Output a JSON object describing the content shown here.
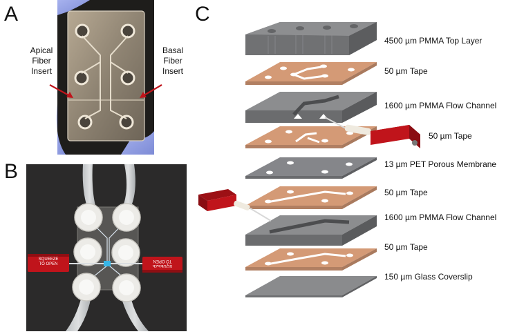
{
  "panels": {
    "a": "A",
    "b": "B",
    "c": "C"
  },
  "panel_a": {
    "apical_label": [
      "Apical",
      "Fiber",
      "Insert"
    ],
    "basal_label": [
      "Basal",
      "Fiber",
      "Insert"
    ]
  },
  "panel_b": {
    "connector_left_text": [
      "SQUEEZE",
      "TO OPEN"
    ],
    "connector_right_text": [
      "SQUEEZE",
      "TO OPEN"
    ]
  },
  "layers": [
    "4500 µm PMMA Top Layer",
    "50 µm Tape",
    "1600 µm PMMA Flow Channel",
    "50 µm Tape",
    "13 µm PET Porous Membrane",
    "50 µm Tape",
    "1600 µm PMMA Flow Channel",
    "50 µm Tape",
    "150 µm Glass Coverslip"
  ],
  "colors": {
    "pmma": "#7d7e80",
    "tape": "#d9a07a",
    "glass": "#8a8b8d",
    "connector": "#c0141b",
    "arrow": "#c0141b"
  }
}
